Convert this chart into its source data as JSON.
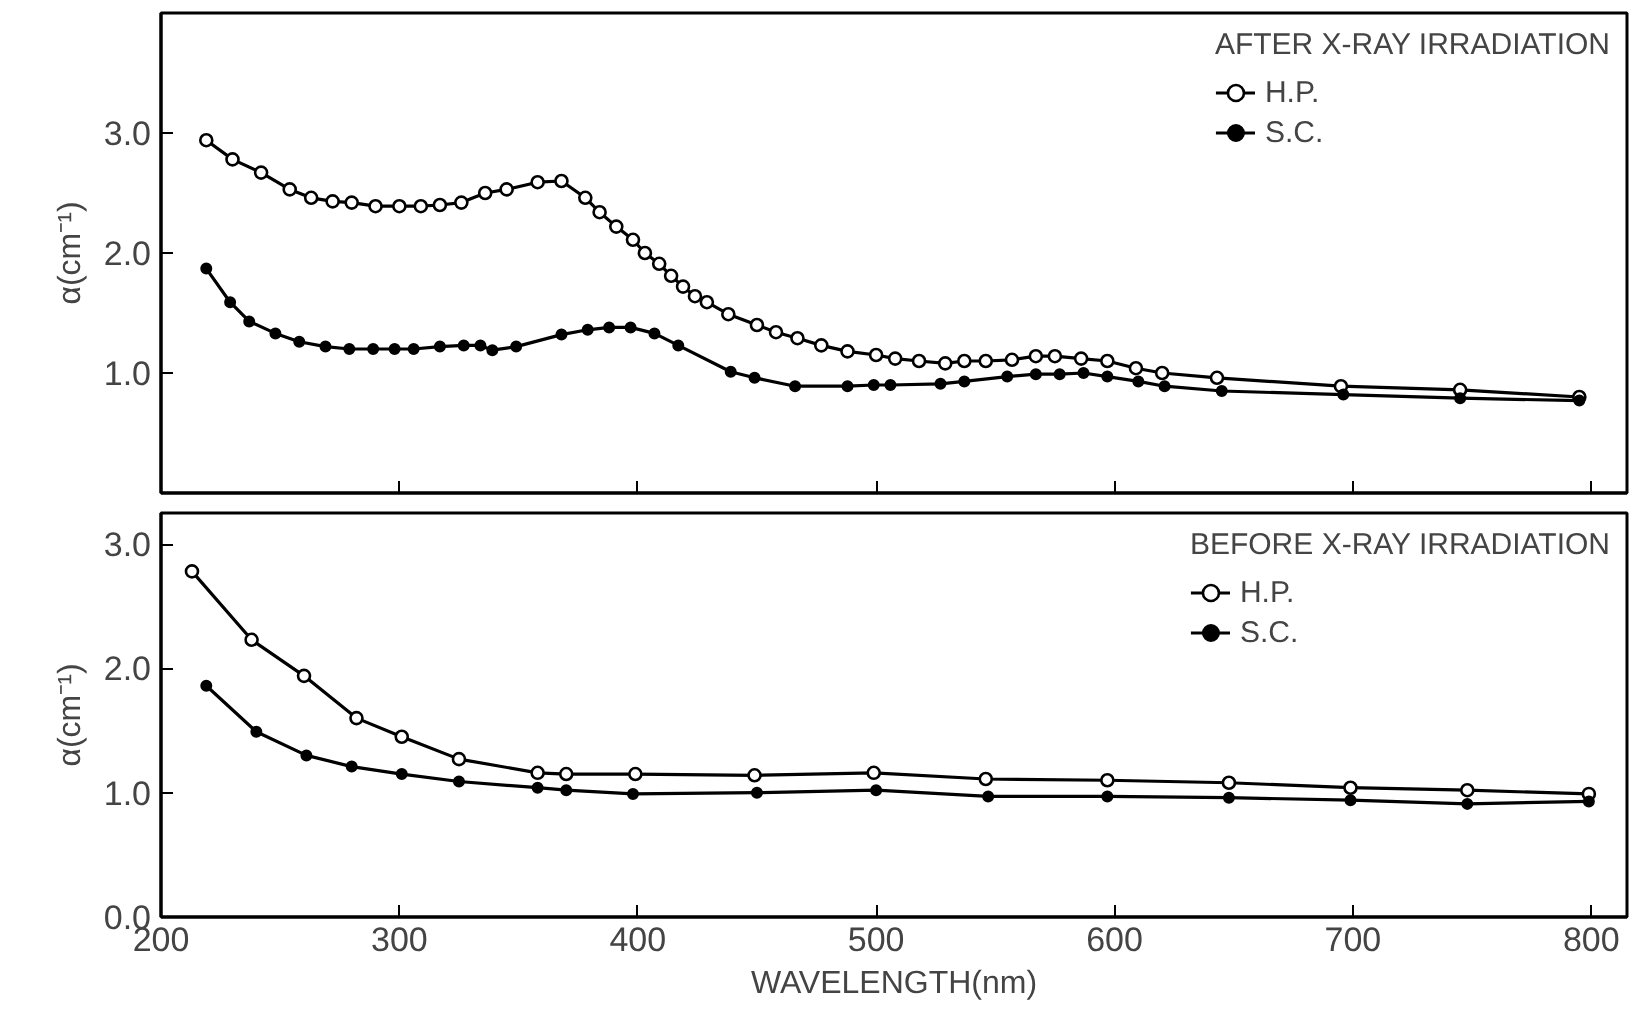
{
  "chart_data": [
    {
      "type": "line",
      "legend_title": "AFTER X-RAY IRRADIATION",
      "ylabel": "α(cm⁻¹)",
      "xlim": [
        200,
        815
      ],
      "ylim": [
        0,
        4
      ],
      "xticks": [
        200,
        300,
        400,
        500,
        600,
        700,
        800
      ],
      "yticks": [
        {
          "value": 1,
          "label": "1.0"
        },
        {
          "value": 2,
          "label": "2.0"
        },
        {
          "value": 3,
          "label": "3.0"
        }
      ],
      "tick_labels": "y",
      "grid": false,
      "legend": "top right",
      "line_style": "solid",
      "series": [
        {
          "name": "H.P.",
          "color": "#000000",
          "marker": "circle",
          "x": [
            219,
            230,
            242,
            254,
            263,
            272,
            280,
            290,
            300,
            309,
            317,
            326,
            336,
            345,
            358,
            368,
            378,
            384,
            391,
            398,
            403,
            409,
            414,
            419,
            424,
            429,
            438,
            450,
            458,
            467,
            477,
            488,
            500,
            508,
            518,
            529,
            537,
            546,
            557,
            567,
            575,
            586,
            597,
            609,
            620,
            643,
            695,
            745,
            795
          ],
          "values": [
            2.94,
            2.78,
            2.67,
            2.53,
            2.46,
            2.43,
            2.42,
            2.39,
            2.39,
            2.39,
            2.4,
            2.42,
            2.5,
            2.53,
            2.59,
            2.6,
            2.46,
            2.34,
            2.22,
            2.11,
            2.0,
            1.91,
            1.81,
            1.72,
            1.64,
            1.59,
            1.49,
            1.4,
            1.34,
            1.29,
            1.23,
            1.18,
            1.15,
            1.12,
            1.1,
            1.08,
            1.1,
            1.1,
            1.11,
            1.14,
            1.14,
            1.12,
            1.1,
            1.04,
            1.0,
            0.96,
            0.89,
            0.86,
            0.8
          ]
        },
        {
          "name": "S.C.",
          "color": "#000000",
          "marker": "dot",
          "x": [
            219,
            229,
            237,
            248,
            258,
            269,
            279,
            289,
            298,
            306,
            317,
            327,
            334,
            339,
            349,
            368,
            379,
            388,
            397,
            407,
            417,
            439,
            449,
            466,
            488,
            499,
            506,
            527,
            537,
            555,
            567,
            577,
            587,
            597,
            610,
            621,
            645,
            696,
            745,
            795
          ],
          "values": [
            1.87,
            1.59,
            1.43,
            1.33,
            1.26,
            1.22,
            1.2,
            1.2,
            1.2,
            1.2,
            1.22,
            1.23,
            1.23,
            1.19,
            1.22,
            1.32,
            1.36,
            1.38,
            1.38,
            1.33,
            1.23,
            1.01,
            0.96,
            0.89,
            0.89,
            0.9,
            0.9,
            0.91,
            0.93,
            0.97,
            0.99,
            0.99,
            1.0,
            0.97,
            0.93,
            0.89,
            0.85,
            0.82,
            0.79,
            0.77
          ]
        }
      ]
    },
    {
      "type": "line",
      "legend_title": "BEFORE X-RAY IRRADIATION",
      "ylabel": "α(cm⁻¹)",
      "xlabel": "WAVELENGTH(nm)",
      "xlim": [
        200,
        815
      ],
      "ylim": [
        0,
        3.25
      ],
      "xticks": [
        200,
        300,
        400,
        500,
        600,
        700,
        800
      ],
      "yticks": [
        {
          "value": 0,
          "label": "0.0"
        },
        {
          "value": 1,
          "label": "1.0"
        },
        {
          "value": 2,
          "label": "2.0"
        },
        {
          "value": 3,
          "label": "3.0"
        }
      ],
      "grid": false,
      "legend": "top right",
      "line_style": "solid",
      "series": [
        {
          "name": "H.P.",
          "color": "#000000",
          "marker": "circle",
          "x": [
            213,
            238,
            260,
            282,
            301,
            325,
            358,
            370,
            399,
            449,
            499,
            546,
            597,
            648,
            699,
            748,
            799
          ],
          "values": [
            2.78,
            2.23,
            1.94,
            1.6,
            1.45,
            1.27,
            1.16,
            1.15,
            1.15,
            1.14,
            1.16,
            1.11,
            1.1,
            1.08,
            1.04,
            1.02,
            0.99
          ]
        },
        {
          "name": "S.C.",
          "color": "#000000",
          "marker": "dot",
          "x": [
            219,
            240,
            261,
            280,
            301,
            325,
            358,
            370,
            398,
            450,
            500,
            547,
            597,
            648,
            699,
            748,
            799
          ],
          "values": [
            1.86,
            1.49,
            1.3,
            1.21,
            1.15,
            1.09,
            1.04,
            1.02,
            0.99,
            1.0,
            1.02,
            0.97,
            0.97,
            0.96,
            0.94,
            0.91,
            0.93
          ]
        }
      ]
    }
  ]
}
